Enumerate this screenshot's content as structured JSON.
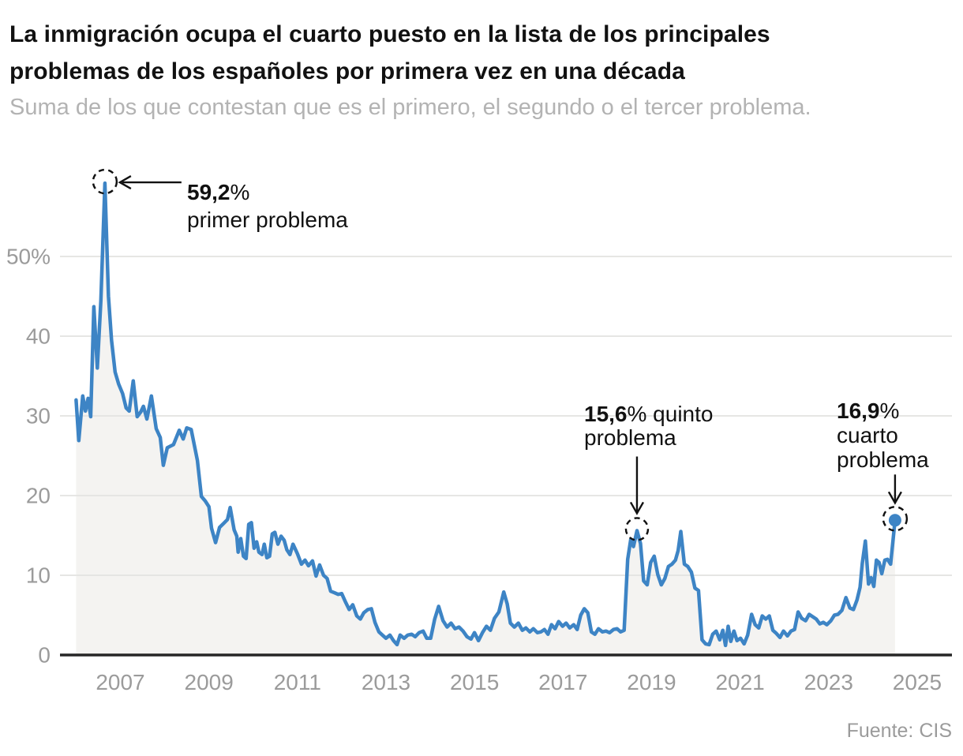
{
  "header": {
    "title_lines": [
      "La inmigración ocupa el cuarto puesto en la lista de los principales",
      "problemas de los españoles por primera vez en una década"
    ],
    "subtitle": "Suma de los que contestan que es el primero, el segundo o el tercer problema."
  },
  "footer": {
    "source": "Fuente: CIS"
  },
  "colors": {
    "line": "#3d84c5",
    "area_fill": "#f4f3f1",
    "grid": "#e3e3e1",
    "axis_baseline": "#262626",
    "tick_text": "#9b9b9b",
    "annotation_text": "#111111",
    "title_text": "#111111",
    "subtitle_text": "#b3b3b3",
    "dot": "#3d84c5"
  },
  "chart_data": {
    "type": "line",
    "title": "La inmigración ocupa el cuarto puesto en la lista de los principales problemas de los españoles por primera vez en una década",
    "subtitle": "Suma de los que contestan que es el primero, el segundo o el tercer problema.",
    "xlabel": "",
    "ylabel": "",
    "x_range": [
      2005.64,
      2025.8
    ],
    "ylim": [
      0,
      62
    ],
    "grid": "horizontal",
    "legend": "none",
    "x_ticks": [
      2007,
      2009,
      2011,
      2013,
      2015,
      2017,
      2019,
      2021,
      2023,
      2025
    ],
    "y_ticks": [
      {
        "v": 0,
        "label": "0"
      },
      {
        "v": 10,
        "label": "10"
      },
      {
        "v": 20,
        "label": "20"
      },
      {
        "v": 30,
        "label": "30"
      },
      {
        "v": 40,
        "label": "40"
      },
      {
        "v": 50,
        "label": "50%"
      }
    ],
    "series": [
      {
        "name": "inmigración",
        "points": [
          [
            2006.0,
            32.0
          ],
          [
            2006.06,
            26.9
          ],
          [
            2006.15,
            32.5
          ],
          [
            2006.21,
            30.6
          ],
          [
            2006.27,
            32.2
          ],
          [
            2006.33,
            29.9
          ],
          [
            2006.4,
            43.7
          ],
          [
            2006.48,
            36.0
          ],
          [
            2006.56,
            44.5
          ],
          [
            2006.65,
            59.2
          ],
          [
            2006.73,
            45.0
          ],
          [
            2006.8,
            39.5
          ],
          [
            2006.88,
            35.5
          ],
          [
            2006.96,
            34.0
          ],
          [
            2007.05,
            32.8
          ],
          [
            2007.13,
            31.0
          ],
          [
            2007.2,
            30.6
          ],
          [
            2007.29,
            34.4
          ],
          [
            2007.38,
            29.9
          ],
          [
            2007.46,
            30.5
          ],
          [
            2007.52,
            31.2
          ],
          [
            2007.6,
            29.6
          ],
          [
            2007.7,
            32.5
          ],
          [
            2007.81,
            28.4
          ],
          [
            2007.9,
            27.3
          ],
          [
            2007.97,
            23.8
          ],
          [
            2008.06,
            26.0
          ],
          [
            2008.2,
            26.4
          ],
          [
            2008.33,
            28.2
          ],
          [
            2008.42,
            27.1
          ],
          [
            2008.5,
            28.5
          ],
          [
            2008.6,
            28.3
          ],
          [
            2008.74,
            24.4
          ],
          [
            2008.83,
            19.9
          ],
          [
            2008.92,
            19.3
          ],
          [
            2009.0,
            18.6
          ],
          [
            2009.06,
            15.9
          ],
          [
            2009.15,
            14.1
          ],
          [
            2009.24,
            16.0
          ],
          [
            2009.33,
            16.5
          ],
          [
            2009.42,
            17.0
          ],
          [
            2009.48,
            18.5
          ],
          [
            2009.57,
            15.7
          ],
          [
            2009.63,
            14.9
          ],
          [
            2009.66,
            12.9
          ],
          [
            2009.72,
            14.6
          ],
          [
            2009.78,
            12.4
          ],
          [
            2009.84,
            12.1
          ],
          [
            2009.9,
            16.4
          ],
          [
            2009.96,
            16.6
          ],
          [
            2010.02,
            13.4
          ],
          [
            2010.08,
            14.2
          ],
          [
            2010.13,
            12.9
          ],
          [
            2010.2,
            12.6
          ],
          [
            2010.25,
            13.9
          ],
          [
            2010.31,
            12.2
          ],
          [
            2010.37,
            12.4
          ],
          [
            2010.43,
            15.2
          ],
          [
            2010.49,
            15.4
          ],
          [
            2010.56,
            13.9
          ],
          [
            2010.63,
            14.9
          ],
          [
            2010.7,
            14.4
          ],
          [
            2010.76,
            13.2
          ],
          [
            2010.83,
            12.6
          ],
          [
            2010.9,
            13.9
          ],
          [
            2011.0,
            12.7
          ],
          [
            2011.09,
            11.4
          ],
          [
            2011.17,
            11.9
          ],
          [
            2011.25,
            11.2
          ],
          [
            2011.34,
            11.8
          ],
          [
            2011.42,
            9.9
          ],
          [
            2011.5,
            11.3
          ],
          [
            2011.59,
            10.0
          ],
          [
            2011.67,
            9.6
          ],
          [
            2011.75,
            8.0
          ],
          [
            2011.84,
            7.8
          ],
          [
            2011.92,
            7.6
          ],
          [
            2012.0,
            7.7
          ],
          [
            2012.09,
            6.6
          ],
          [
            2012.17,
            5.7
          ],
          [
            2012.25,
            6.3
          ],
          [
            2012.34,
            4.9
          ],
          [
            2012.42,
            4.5
          ],
          [
            2012.5,
            5.3
          ],
          [
            2012.59,
            5.7
          ],
          [
            2012.67,
            5.8
          ],
          [
            2012.75,
            4.1
          ],
          [
            2012.84,
            2.9
          ],
          [
            2012.92,
            2.5
          ],
          [
            2013.0,
            2.1
          ],
          [
            2013.09,
            2.5
          ],
          [
            2013.17,
            1.8
          ],
          [
            2013.25,
            1.3
          ],
          [
            2013.32,
            2.5
          ],
          [
            2013.41,
            2.1
          ],
          [
            2013.49,
            2.5
          ],
          [
            2013.58,
            2.6
          ],
          [
            2013.66,
            2.3
          ],
          [
            2013.75,
            2.8
          ],
          [
            2013.84,
            3.0
          ],
          [
            2013.92,
            2.1
          ],
          [
            2014.01,
            2.1
          ],
          [
            2014.1,
            4.5
          ],
          [
            2014.19,
            6.1
          ],
          [
            2014.29,
            4.3
          ],
          [
            2014.38,
            3.5
          ],
          [
            2014.47,
            4.0
          ],
          [
            2014.56,
            3.3
          ],
          [
            2014.65,
            3.5
          ],
          [
            2014.74,
            3.0
          ],
          [
            2014.83,
            2.3
          ],
          [
            2014.92,
            2.0
          ],
          [
            2015.0,
            2.8
          ],
          [
            2015.09,
            1.8
          ],
          [
            2015.18,
            2.8
          ],
          [
            2015.27,
            3.6
          ],
          [
            2015.36,
            3.1
          ],
          [
            2015.45,
            4.6
          ],
          [
            2015.55,
            5.4
          ],
          [
            2015.66,
            7.9
          ],
          [
            2015.74,
            6.4
          ],
          [
            2015.81,
            4.0
          ],
          [
            2015.9,
            3.5
          ],
          [
            2015.99,
            4.0
          ],
          [
            2016.08,
            3.1
          ],
          [
            2016.16,
            3.4
          ],
          [
            2016.25,
            2.9
          ],
          [
            2016.33,
            3.3
          ],
          [
            2016.42,
            2.8
          ],
          [
            2016.5,
            2.9
          ],
          [
            2016.58,
            3.2
          ],
          [
            2016.66,
            2.6
          ],
          [
            2016.74,
            3.8
          ],
          [
            2016.82,
            3.3
          ],
          [
            2016.9,
            4.2
          ],
          [
            2016.99,
            3.6
          ],
          [
            2017.07,
            4.0
          ],
          [
            2017.15,
            3.4
          ],
          [
            2017.24,
            3.8
          ],
          [
            2017.32,
            3.2
          ],
          [
            2017.4,
            5.0
          ],
          [
            2017.48,
            5.8
          ],
          [
            2017.56,
            5.3
          ],
          [
            2017.64,
            2.9
          ],
          [
            2017.72,
            2.6
          ],
          [
            2017.8,
            3.3
          ],
          [
            2017.89,
            2.9
          ],
          [
            2017.97,
            3.0
          ],
          [
            2018.05,
            2.8
          ],
          [
            2018.14,
            3.2
          ],
          [
            2018.22,
            3.3
          ],
          [
            2018.3,
            2.9
          ],
          [
            2018.38,
            3.1
          ],
          [
            2018.46,
            12.0
          ],
          [
            2018.53,
            14.5
          ],
          [
            2018.59,
            13.6
          ],
          [
            2018.67,
            15.6
          ],
          [
            2018.75,
            14.0
          ],
          [
            2018.82,
            9.3
          ],
          [
            2018.9,
            8.8
          ],
          [
            2018.98,
            11.6
          ],
          [
            2019.06,
            12.4
          ],
          [
            2019.14,
            10.1
          ],
          [
            2019.22,
            8.8
          ],
          [
            2019.3,
            9.6
          ],
          [
            2019.38,
            11.1
          ],
          [
            2019.46,
            11.4
          ],
          [
            2019.54,
            11.9
          ],
          [
            2019.6,
            13.1
          ],
          [
            2019.66,
            15.5
          ],
          [
            2019.74,
            11.4
          ],
          [
            2019.82,
            11.1
          ],
          [
            2019.9,
            10.4
          ],
          [
            2019.98,
            8.4
          ],
          [
            2020.06,
            8.1
          ],
          [
            2020.14,
            1.9
          ],
          [
            2020.22,
            1.4
          ],
          [
            2020.3,
            1.3
          ],
          [
            2020.38,
            2.6
          ],
          [
            2020.46,
            3.0
          ],
          [
            2020.54,
            1.9
          ],
          [
            2020.61,
            3.1
          ],
          [
            2020.67,
            1.2
          ],
          [
            2020.73,
            3.6
          ],
          [
            2020.79,
            1.7
          ],
          [
            2020.86,
            3.0
          ],
          [
            2020.93,
            1.8
          ],
          [
            2021.01,
            2.1
          ],
          [
            2021.09,
            1.4
          ],
          [
            2021.17,
            2.5
          ],
          [
            2021.26,
            5.1
          ],
          [
            2021.34,
            3.8
          ],
          [
            2021.42,
            3.4
          ],
          [
            2021.5,
            4.9
          ],
          [
            2021.58,
            4.5
          ],
          [
            2021.66,
            4.9
          ],
          [
            2021.74,
            3.1
          ],
          [
            2021.82,
            2.7
          ],
          [
            2021.9,
            2.2
          ],
          [
            2021.98,
            3.0
          ],
          [
            2022.07,
            2.4
          ],
          [
            2022.15,
            3.0
          ],
          [
            2022.23,
            3.2
          ],
          [
            2022.31,
            5.4
          ],
          [
            2022.39,
            4.6
          ],
          [
            2022.48,
            4.3
          ],
          [
            2022.56,
            5.1
          ],
          [
            2022.64,
            4.8
          ],
          [
            2022.72,
            4.5
          ],
          [
            2022.8,
            3.9
          ],
          [
            2022.88,
            4.1
          ],
          [
            2022.96,
            3.8
          ],
          [
            2023.05,
            4.3
          ],
          [
            2023.13,
            5.0
          ],
          [
            2023.21,
            5.1
          ],
          [
            2023.3,
            5.6
          ],
          [
            2023.39,
            7.2
          ],
          [
            2023.48,
            5.9
          ],
          [
            2023.56,
            5.7
          ],
          [
            2023.64,
            6.9
          ],
          [
            2023.71,
            8.5
          ],
          [
            2023.76,
            11.5
          ],
          [
            2023.83,
            14.3
          ],
          [
            2023.9,
            8.9
          ],
          [
            2023.96,
            9.7
          ],
          [
            2024.02,
            8.6
          ],
          [
            2024.08,
            11.9
          ],
          [
            2024.14,
            11.6
          ],
          [
            2024.2,
            10.2
          ],
          [
            2024.27,
            11.9
          ],
          [
            2024.33,
            12.0
          ],
          [
            2024.4,
            11.4
          ],
          [
            2024.5,
            16.9
          ]
        ]
      }
    ],
    "end_dot": {
      "year": 2024.5,
      "value": 16.9
    },
    "annotations": [
      {
        "id": "a1",
        "bold": "59,2",
        "rest": "%",
        "label": "primer problema",
        "target": {
          "year": 2006.65,
          "value": 59.2
        },
        "arrow": "left",
        "circle_r": 15
      },
      {
        "id": "a2",
        "bold": "15,6",
        "rest": "% quinto",
        "label2": "problema",
        "target": {
          "year": 2018.67,
          "value": 15.6
        },
        "arrow": "down",
        "circle_r": 14
      },
      {
        "id": "a3",
        "bold": "16,9",
        "rest": "%",
        "label1": "cuarto",
        "label2": "problema",
        "target": {
          "year": 2024.5,
          "value": 16.9
        },
        "arrow": "down",
        "circle_r": 15
      }
    ]
  }
}
